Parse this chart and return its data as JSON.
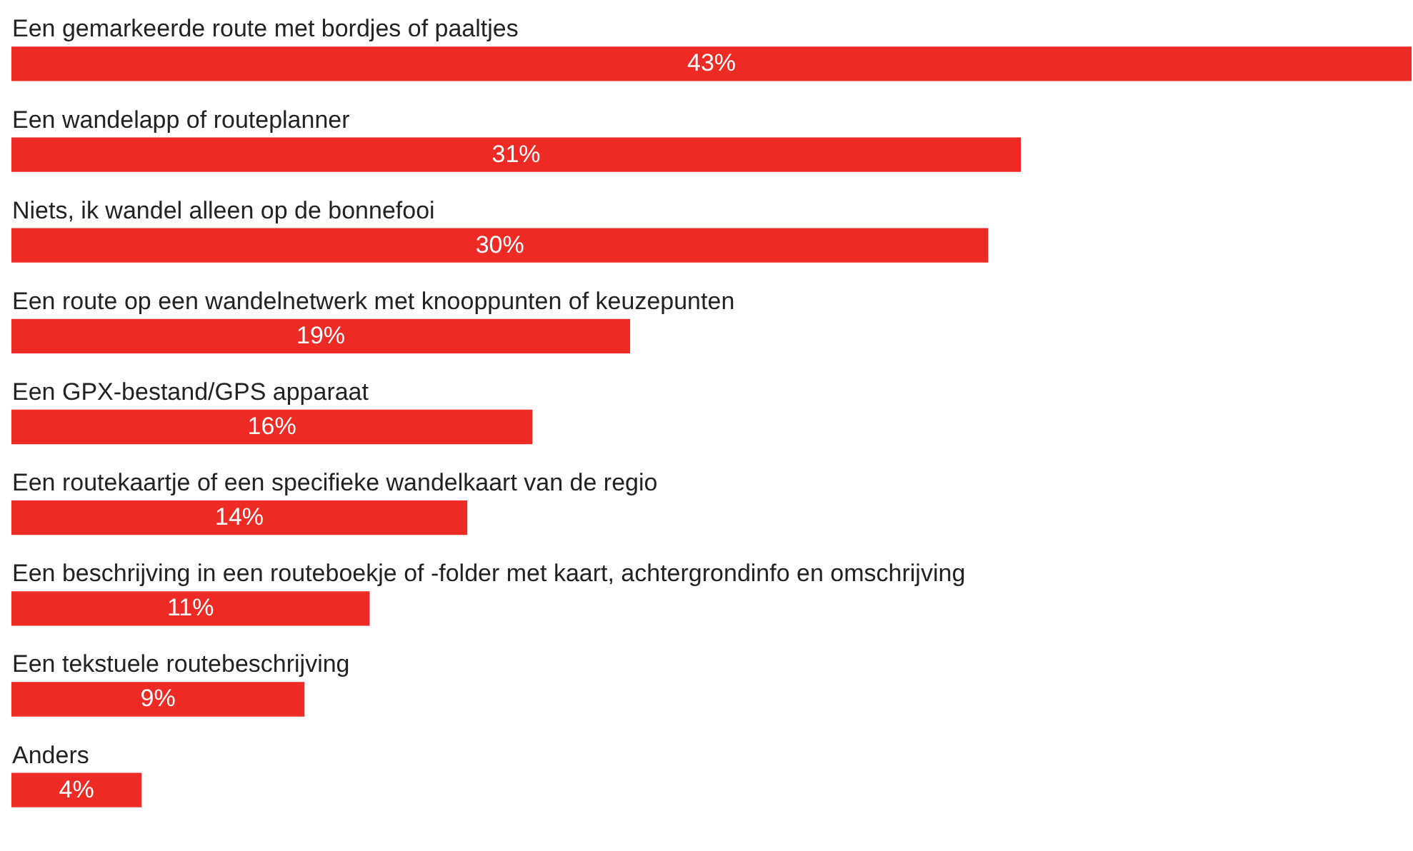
{
  "chart_data": {
    "type": "bar",
    "orientation": "horizontal",
    "tick_labels": "y",
    "categories": [
      "Een gemarkeerde route met bordjes of paaltjes",
      "Een wandelapp of routeplanner",
      "Niets, ik wandel alleen op de bonnefooi",
      "Een route op een wandelnetwerk met knooppunten of keuzepunten",
      "Een GPX-bestand/GPS apparaat",
      "Een routekaartje of een specifieke wandelkaart van de regio",
      "Een beschrijving in een routeboekje of -folder met kaart, achtergrondinfo en omschrijving",
      "Een tekstuele routebeschrijving",
      "Anders"
    ],
    "values": [
      43,
      31,
      30,
      19,
      16,
      14,
      11,
      9,
      4
    ],
    "value_labels": [
      "43%",
      "31%",
      "30%",
      "19%",
      "16%",
      "14%",
      "11%",
      "9%",
      "4%"
    ],
    "color": "#ee2a24"
  }
}
